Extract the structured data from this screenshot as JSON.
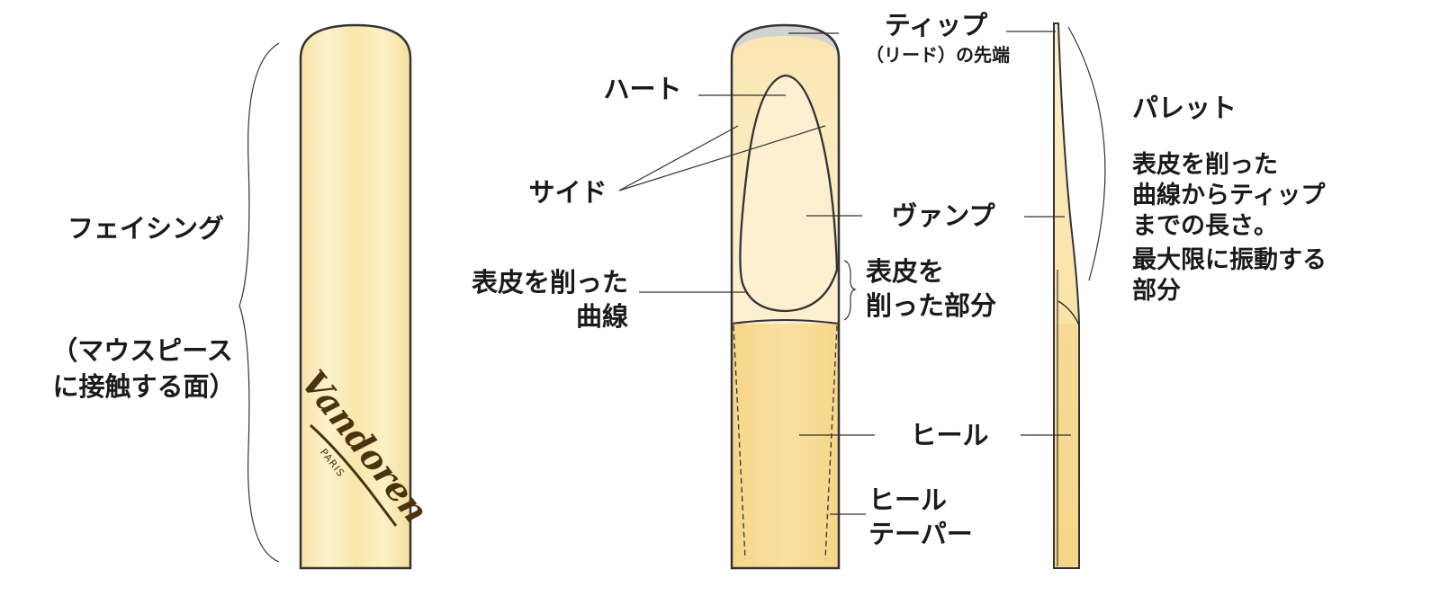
{
  "colors": {
    "reed_light": "#fdf0c4",
    "reed_mid": "#f9e4a2",
    "reed_heel": "#f6d98a",
    "vamp_cut": "#fdeecb",
    "tip_gray": "#d2d2d2",
    "outline": "#333333"
  },
  "logo": {
    "brand": "Vandoren",
    "city": "PARIS"
  },
  "labels": {
    "facing_title": "フェイシング",
    "facing_sub_1": "（マウスピース",
    "facing_sub_2": "に接触する面）",
    "tip_1": "ティップ",
    "tip_2": "（リード）の先端",
    "heart": "ハート",
    "side": "サイド",
    "vamp": "ヴァンプ",
    "cut_curve_1": "表皮を削った",
    "cut_curve_2": "曲線",
    "cut_area_1": "表皮を",
    "cut_area_2": "削った部分",
    "heel": "ヒール",
    "heel_taper_1": "ヒール",
    "heel_taper_2": "テーパー",
    "palette_title": "パレット",
    "palette_desc": [
      "表皮を削った",
      "曲線からティップ",
      "までの長さ。",
      "最大限に振動する",
      "部分"
    ]
  }
}
